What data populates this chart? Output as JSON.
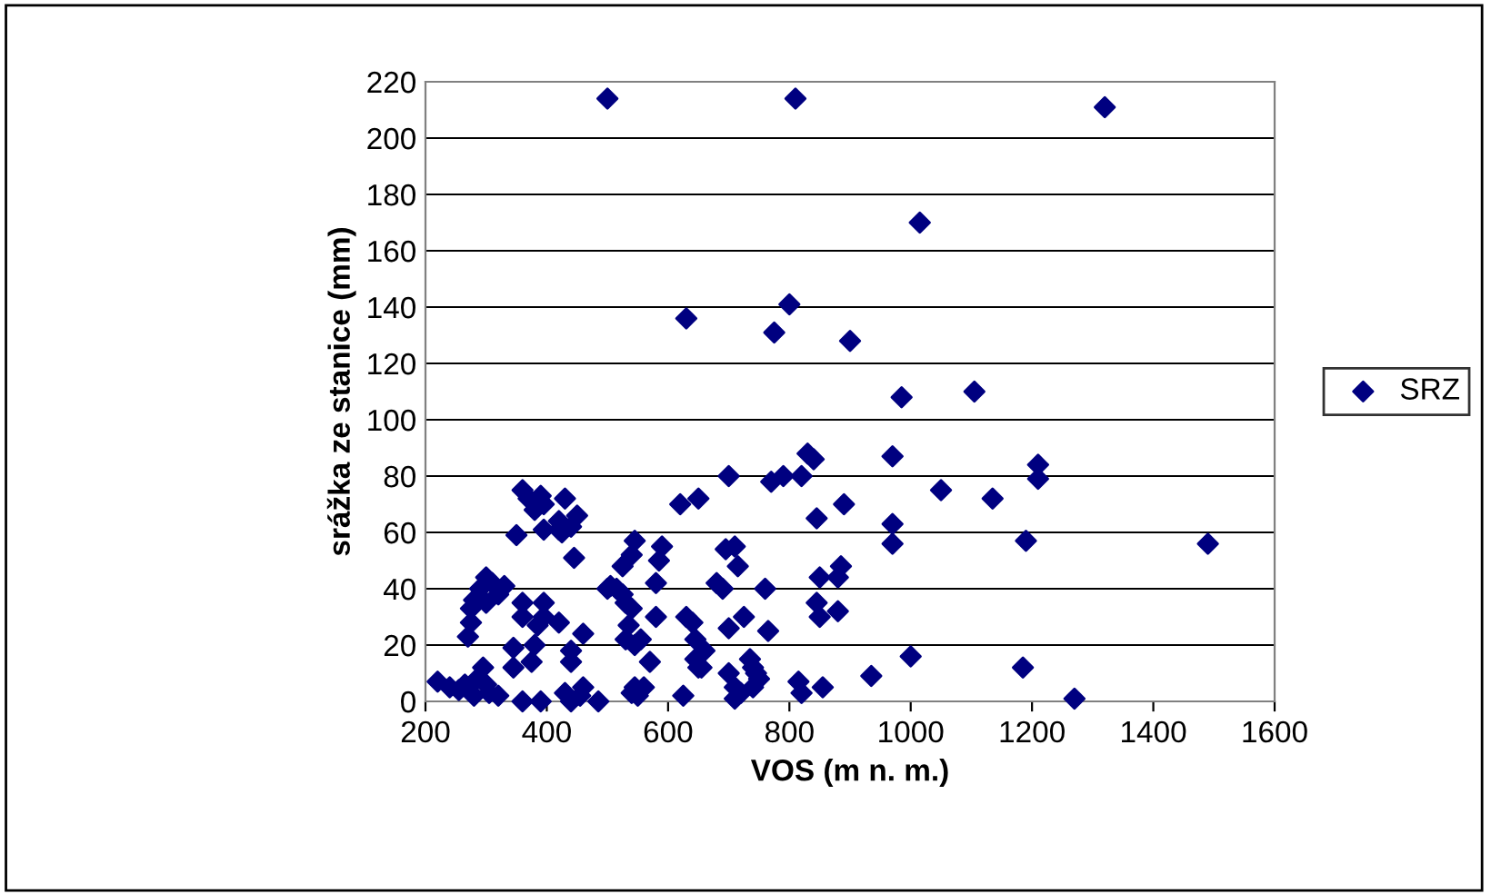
{
  "chart_data": {
    "type": "scatter",
    "xlabel": "VOS (m n. m.)",
    "ylabel": "srážka ze stanice (mm)",
    "xlim": [
      200,
      1600
    ],
    "xticks": [
      200,
      400,
      600,
      800,
      1000,
      1200,
      1400,
      1600
    ],
    "ylim": [
      0,
      220
    ],
    "yticks": [
      0,
      20,
      40,
      60,
      80,
      100,
      120,
      140,
      160,
      180,
      200,
      220
    ],
    "grid": "y",
    "legend": "right",
    "marker": "diamond",
    "series": [
      {
        "name": "SRZ",
        "color": "#000080",
        "x": [
          500,
          810,
          1320,
          1015,
          800,
          775,
          630,
          900,
          985,
          1105,
          1050,
          1135,
          1210,
          1210,
          970,
          970,
          970,
          1190,
          1490,
          1185,
          1270,
          1000,
          935,
          830,
          840,
          820,
          790,
          770,
          700,
          890,
          845,
          850,
          880,
          845,
          850,
          880,
          885,
          815,
          820,
          855,
          620,
          650,
          690,
          695,
          710,
          715,
          680,
          760,
          765,
          735,
          740,
          725,
          700,
          700,
          710,
          720,
          710,
          740,
          745,
          750,
          590,
          585,
          580,
          580,
          570,
          545,
          540,
          525,
          515,
          525,
          530,
          540,
          535,
          530,
          545,
          555,
          550,
          540,
          545,
          560,
          630,
          640,
          645,
          645,
          650,
          660,
          655,
          625,
          360,
          370,
          390,
          395,
          380,
          430,
          420,
          450,
          420,
          425,
          440,
          395,
          350,
          445,
          300,
          310,
          290,
          330,
          320,
          280,
          275,
          275,
          270,
          300,
          360,
          360,
          395,
          395,
          385,
          420,
          440,
          440,
          460,
          460,
          345,
          345,
          380,
          375,
          295,
          285,
          300,
          305,
          320,
          220,
          240,
          255,
          265,
          280,
          360,
          390,
          430,
          440,
          455,
          485,
          500,
          505
        ],
        "values": [
          214,
          214,
          211,
          170,
          141,
          131,
          136,
          128,
          108,
          110,
          75,
          72,
          84,
          79,
          87,
          63,
          56,
          57,
          56,
          12,
          1,
          16,
          9,
          88,
          86,
          80,
          80,
          78,
          80,
          70,
          65,
          44,
          44,
          35,
          30,
          32,
          48,
          7,
          3,
          5,
          70,
          72,
          40,
          54,
          55,
          48,
          42,
          40,
          25,
          15,
          12,
          30,
          26,
          10,
          5,
          3,
          1,
          5,
          10,
          8,
          55,
          50,
          42,
          30,
          14,
          57,
          52,
          48,
          40,
          38,
          35,
          33,
          27,
          22,
          20,
          22,
          2,
          3,
          5,
          5,
          30,
          28,
          22,
          15,
          12,
          18,
          12,
          2,
          75,
          72,
          73,
          70,
          68,
          72,
          64,
          66,
          61,
          60,
          62,
          61,
          59,
          51,
          44,
          42,
          40,
          41,
          38,
          36,
          33,
          28,
          23,
          35,
          35,
          30,
          35,
          30,
          27,
          28,
          18,
          14,
          24,
          5,
          19,
          12,
          20,
          14,
          12,
          8,
          6,
          3,
          2,
          7,
          5,
          4,
          6,
          2,
          0,
          0,
          3,
          0,
          2,
          0,
          40,
          41
        ]
      }
    ]
  }
}
